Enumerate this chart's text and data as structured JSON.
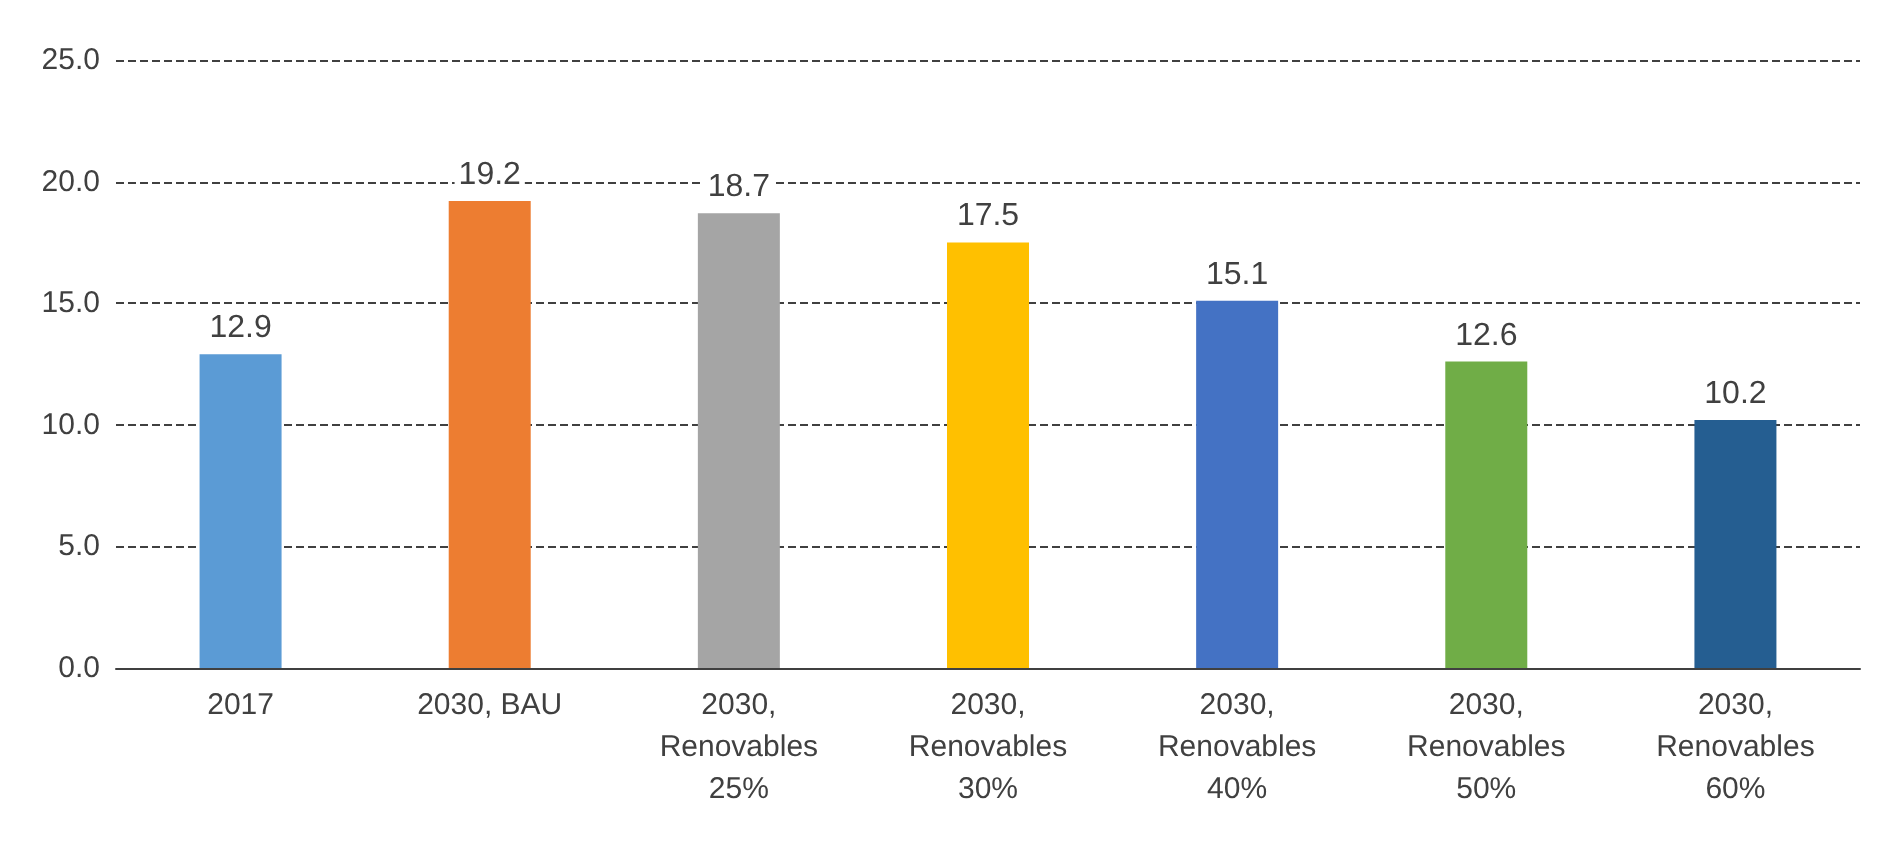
{
  "chart_data": {
    "type": "bar",
    "categories": [
      "2017",
      "2030, BAU",
      "2030,\nRenovables\n25%",
      "2030,\nRenovables\n30%",
      "2030,\nRenovables\n40%",
      "2030,\nRenovables\n50%",
      "2030,\nRenovables\n60%"
    ],
    "values": [
      12.9,
      19.2,
      18.7,
      17.5,
      15.1,
      12.6,
      10.2
    ],
    "colors": [
      "#5b9bd5",
      "#ed7d31",
      "#a5a5a5",
      "#ffc000",
      "#4472c4",
      "#70ad47",
      "#255e91"
    ],
    "ylim": [
      0,
      25
    ],
    "yticks": [
      {
        "value": 0,
        "label": "0.0"
      },
      {
        "value": 5,
        "label": "5.0"
      },
      {
        "value": 10,
        "label": "10.0"
      },
      {
        "value": 15,
        "label": "15.0"
      },
      {
        "value": 20,
        "label": "20.0"
      },
      {
        "value": 25,
        "label": "25.0"
      }
    ],
    "grid": "y",
    "data_labels": true
  }
}
